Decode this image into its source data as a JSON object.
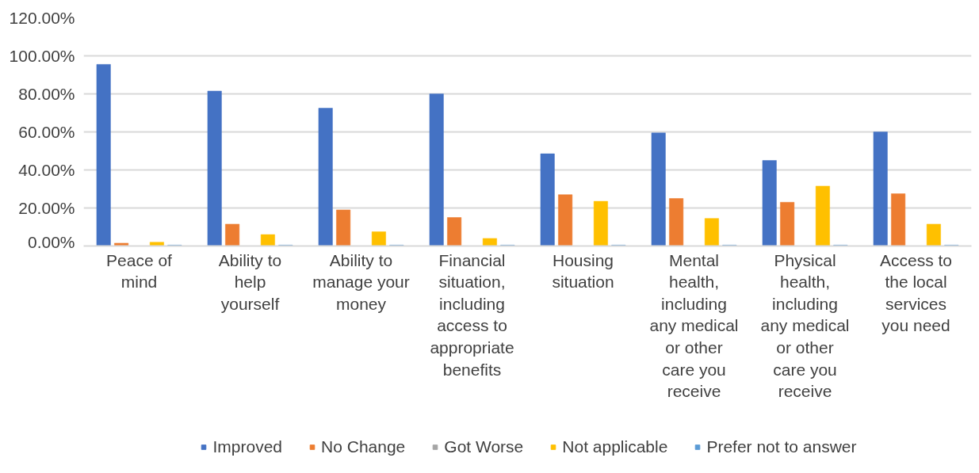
{
  "chart_data": {
    "type": "bar",
    "categories": [
      "Peace of mind",
      "Ability to help yourself",
      "Ability to manage your money",
      "Financial situation, including access to appropriate benefits",
      "Housing situation",
      "Mental health, including any medical or other care you receive",
      "Physical health, including any medical or other care you receive",
      "Access to the local services you need"
    ],
    "series": [
      {
        "name": "Improved",
        "color": "#4472c4",
        "values": [
          95.5,
          81.5,
          72.5,
          80,
          48.5,
          59.5,
          45,
          60
        ]
      },
      {
        "name": "No Change",
        "color": "#ed7d31",
        "values": [
          1.5,
          11.5,
          19,
          15,
          27,
          25,
          23,
          27.5
        ]
      },
      {
        "name": "Got Worse",
        "color": "#a5a5a5",
        "values": [
          0,
          0,
          0,
          0,
          0,
          0,
          0,
          0
        ]
      },
      {
        "name": "Not applicable",
        "color": "#ffc000",
        "values": [
          2,
          6,
          7.5,
          4,
          23.5,
          14.5,
          31.5,
          11.5
        ]
      },
      {
        "name": "Prefer not to answer",
        "color": "#5b9bd5",
        "values": [
          0.5,
          0.5,
          0.5,
          0.5,
          0.5,
          0.5,
          0.5,
          0.5
        ]
      }
    ],
    "ylim": [
      0,
      120
    ],
    "yticks": [
      {
        "value": 0,
        "label": "0.00%"
      },
      {
        "value": 20,
        "label": "20.00%"
      },
      {
        "value": 40,
        "label": "40.00%"
      },
      {
        "value": 60,
        "label": "60.00%"
      },
      {
        "value": 80,
        "label": "80.00%"
      },
      {
        "value": 100,
        "label": "100.00%"
      },
      {
        "value": 120,
        "label": "120.00%"
      }
    ],
    "grid": "y",
    "legend": "bottom"
  }
}
